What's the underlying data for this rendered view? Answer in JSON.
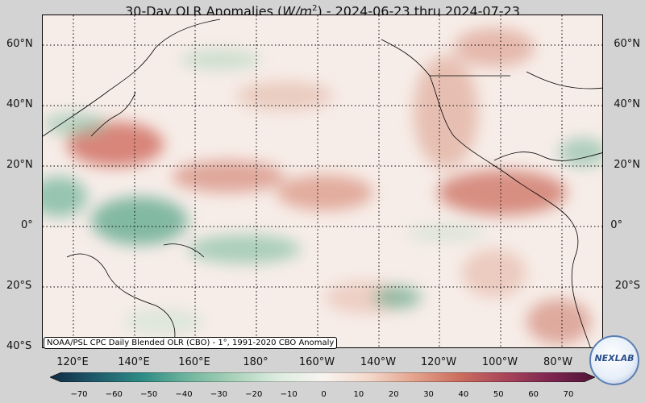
{
  "title": {
    "prefix": "30-Day OLR Anomalies (",
    "unit_base": "W/m",
    "unit_exp": "2",
    "suffix": ") - 2024-06-23 thru 2024-07-23"
  },
  "credit": "NOAA/PSL CPC Daily Blended OLR (CBO) - 1°, 1991-2020 CBO Anomaly",
  "lat_labels": [
    "60°N",
    "40°N",
    "20°N",
    "0°",
    "20°S",
    "40°S"
  ],
  "lon_labels": [
    "120°E",
    "140°E",
    "160°E",
    "180°",
    "160°W",
    "140°W",
    "120°W",
    "100°W",
    "80°W"
  ],
  "colorbar": {
    "ticks": [
      "−70",
      "−60",
      "−50",
      "−40",
      "−30",
      "−20",
      "−10",
      "0",
      "10",
      "20",
      "30",
      "40",
      "50",
      "60",
      "70"
    ],
    "colors": [
      "#122b44",
      "#1f5a6a",
      "#2c8a84",
      "#6fb49d",
      "#a7d1b8",
      "#dcecdf",
      "#f8f4f0",
      "#f3d9cc",
      "#e4a48e",
      "#cc6e5e",
      "#a9465a",
      "#7e2650",
      "#4f1438"
    ]
  },
  "logo_text": "NEXLAB"
}
